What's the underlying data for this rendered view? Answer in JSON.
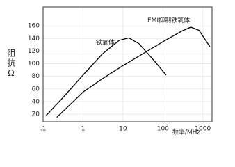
{
  "chart_data": {
    "type": "line",
    "x_log": true,
    "grid": true,
    "ylabel": "阻抗Ω",
    "xlabel": "频率/MHz",
    "annotations": [
      "EMI抑制铁氧体",
      "铁氧体"
    ],
    "xlim": [
      0.1,
      1700
    ],
    "ylim": [
      8,
      190
    ],
    "xticks": [
      {
        "value": 0.1,
        "label": ".1"
      },
      1,
      10,
      100,
      1000
    ],
    "yticks": [
      20,
      40,
      60,
      80,
      100,
      120,
      140,
      160
    ],
    "series": [
      {
        "color": "#000000",
        "x": [
          0.12,
          0.3,
          1,
          3,
          8,
          14,
          25,
          60,
          120
        ],
        "values": [
          18,
          45,
          82,
          115,
          137,
          141,
          132,
          105,
          82
        ]
      },
      {
        "color": "#000000",
        "x": [
          0.22,
          1,
          3,
          10,
          30,
          100,
          300,
          500,
          800,
          1500
        ],
        "values": [
          15,
          55,
          76,
          97,
          115,
          135,
          152,
          158,
          153,
          127
        ]
      }
    ]
  }
}
